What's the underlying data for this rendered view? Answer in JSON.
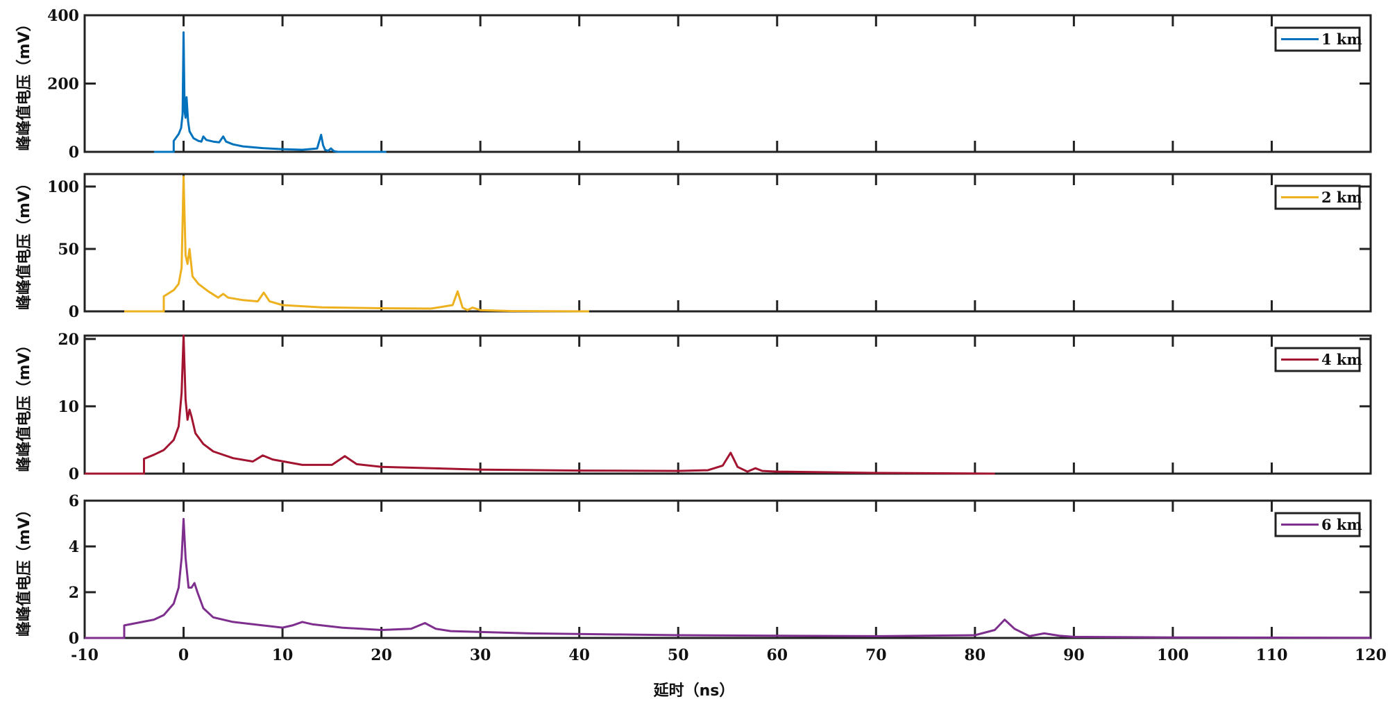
{
  "chart_data": [
    {
      "type": "line",
      "ylabel": "峰峰值电压（mV）",
      "xlim": [
        -10,
        120
      ],
      "ylim": [
        0,
        400
      ],
      "yticks": [
        0,
        200,
        400
      ],
      "series": [
        {
          "name": "1 km",
          "color": "#0072BD",
          "x": [
            -3,
            -1.0,
            -1.0,
            -0.5,
            -0.25,
            -0.1,
            0,
            0.1,
            0.2,
            0.3,
            0.45,
            0.6,
            1.0,
            1.5,
            1.8,
            2.0,
            2.3,
            3.0,
            3.6,
            4.0,
            4.3,
            5.0,
            6,
            8,
            10,
            12,
            13.5,
            13.9,
            14.1,
            14.3,
            14.6,
            14.9,
            15.2,
            15.6,
            17,
            20.5
          ],
          "y": [
            0,
            0,
            32,
            52,
            70,
            110,
            350,
            120,
            100,
            160,
            90,
            60,
            40,
            32,
            30,
            45,
            35,
            30,
            28,
            45,
            30,
            22,
            16,
            11,
            8,
            6,
            10,
            50,
            20,
            6,
            3,
            10,
            2,
            0,
            0,
            0
          ]
        }
      ]
    },
    {
      "type": "line",
      "ylabel": "峰峰值电压（mV）",
      "xlim": [
        -10,
        120
      ],
      "ylim": [
        0,
        110
      ],
      "yticks": [
        0,
        50,
        100
      ],
      "series": [
        {
          "name": "2 km",
          "color": "#EDB120",
          "x": [
            -6,
            -2,
            -2,
            -1,
            -0.5,
            -0.2,
            0,
            0.2,
            0.4,
            0.6,
            0.9,
            1.5,
            2.5,
            3.5,
            4.0,
            4.5,
            6,
            7.5,
            8.1,
            8.7,
            10,
            14,
            20,
            25,
            27.2,
            27.7,
            28.2,
            28.7,
            29.2,
            30,
            33,
            41
          ],
          "y": [
            0,
            0,
            12,
            17,
            22,
            35,
            108,
            45,
            38,
            50,
            28,
            22,
            16,
            11,
            14,
            11,
            9,
            8,
            15,
            8,
            5,
            3.2,
            2.5,
            2.2,
            5,
            16,
            3,
            1,
            3,
            1,
            0.3,
            0
          ]
        }
      ]
    },
    {
      "type": "line",
      "ylabel": "峰峰值电压（mV）",
      "xlim": [
        -10,
        120
      ],
      "ylim": [
        0,
        20.5
      ],
      "yticks": [
        0,
        10,
        20
      ],
      "series": [
        {
          "name": "4 km",
          "color": "#A2142F",
          "x": [
            -10,
            -4,
            -4,
            -3,
            -2,
            -1,
            -0.5,
            -0.2,
            0,
            0.2,
            0.4,
            0.6,
            0.8,
            1.2,
            2,
            3,
            5,
            7,
            8,
            9,
            12,
            15,
            16.3,
            17.5,
            20,
            30,
            40,
            50,
            53,
            54.5,
            55.3,
            56,
            57,
            57.8,
            58.5,
            60,
            70,
            82
          ],
          "y": [
            0,
            0,
            2.2,
            2.8,
            3.5,
            5,
            7,
            12,
            20.5,
            11,
            8,
            9.5,
            8.5,
            6,
            4.4,
            3.3,
            2.3,
            1.8,
            2.7,
            2.1,
            1.3,
            1.3,
            2.6,
            1.4,
            1.0,
            0.6,
            0.45,
            0.4,
            0.5,
            1.2,
            3.1,
            1.0,
            0.3,
            0.8,
            0.4,
            0.3,
            0.1,
            0
          ]
        }
      ]
    },
    {
      "type": "line",
      "xlabel": "延时（ns）",
      "ylabel": "峰峰值电压（mV）",
      "xlim": [
        -10,
        120
      ],
      "ylim": [
        0,
        6
      ],
      "yticks": [
        0,
        2,
        4,
        6
      ],
      "xticks": [
        -10,
        0,
        10,
        20,
        30,
        40,
        50,
        60,
        70,
        80,
        90,
        100,
        110,
        120
      ],
      "series": [
        {
          "name": "6 km",
          "color": "#7E2F8E",
          "x": [
            -10,
            -6,
            -6,
            -3,
            -2,
            -1,
            -0.5,
            -0.2,
            0,
            0.2,
            0.5,
            0.8,
            1.1,
            1.4,
            2,
            3,
            5,
            8,
            10,
            11,
            12,
            13,
            16,
            20,
            23,
            24.4,
            25.5,
            27,
            35,
            50,
            70,
            80,
            82,
            83,
            84,
            85.5,
            87,
            88.5,
            90,
            100,
            120
          ],
          "y": [
            0,
            0,
            0.55,
            0.8,
            1.0,
            1.5,
            2.2,
            3.5,
            5.2,
            3.5,
            2.2,
            2.2,
            2.4,
            2.0,
            1.3,
            0.9,
            0.7,
            0.55,
            0.45,
            0.55,
            0.7,
            0.6,
            0.45,
            0.35,
            0.4,
            0.65,
            0.4,
            0.3,
            0.2,
            0.12,
            0.08,
            0.12,
            0.35,
            0.8,
            0.4,
            0.08,
            0.2,
            0.1,
            0.05,
            0.02,
            0.01
          ]
        }
      ]
    }
  ]
}
